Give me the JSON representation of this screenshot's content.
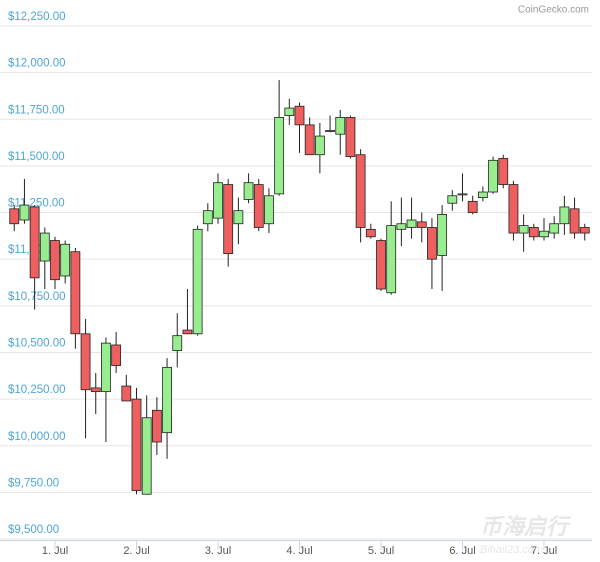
{
  "chart_data": {
    "type": "candlestick",
    "credit": "CoinGecko.com",
    "watermark": [
      "币海启行",
      "Bihaii23.com"
    ],
    "xlim": [
      0.4,
      7.6
    ],
    "xticks": [
      {
        "value": 1,
        "label": "1. Jul"
      },
      {
        "value": 2,
        "label": "2. Jul"
      },
      {
        "value": 3,
        "label": "3. Jul"
      },
      {
        "value": 4,
        "label": "4. Jul"
      },
      {
        "value": 5,
        "label": "5. Jul"
      },
      {
        "value": 6,
        "label": "6. Jul"
      },
      {
        "value": 7,
        "label": "7. Jul"
      }
    ],
    "ylim": [
      9500,
      12250
    ],
    "yticks": [
      {
        "value": 9500,
        "label": "$9,500.00"
      },
      {
        "value": 9750,
        "label": "$9,750.00"
      },
      {
        "value": 10000,
        "label": "$10,000.00"
      },
      {
        "value": 10250,
        "label": "$10,250.00"
      },
      {
        "value": 10500,
        "label": "$10,500.00"
      },
      {
        "value": 10750,
        "label": "$10,750.00"
      },
      {
        "value": 11000,
        "label": "$11,000.00"
      },
      {
        "value": 11250,
        "label": "$11,250.00"
      },
      {
        "value": 11500,
        "label": "$11,500.00"
      },
      {
        "value": 11750,
        "label": "$11,750.00"
      },
      {
        "value": 12000,
        "label": "$12,000.00"
      },
      {
        "value": 12250,
        "label": "$12,250.00"
      }
    ],
    "grid": true,
    "up_color": "#98ee8f",
    "down_color": "#ee5f5f",
    "series": [
      {
        "x": [
          0.5,
          0.625,
          0.75,
          0.875,
          1,
          1.125,
          1.25,
          1.375,
          1.5,
          1.625,
          1.75,
          1.875,
          2,
          2.125,
          2.25,
          2.375,
          2.5,
          2.625,
          2.75,
          2.875,
          3,
          3.125,
          3.25,
          3.375,
          3.5,
          3.625,
          3.75,
          3.875,
          4,
          4.125,
          4.25,
          4.375,
          4.5,
          4.625,
          4.75,
          4.875,
          5,
          5.125,
          5.25,
          5.375,
          5.5,
          5.625,
          5.75,
          5.875,
          6,
          6.125,
          6.25,
          6.375,
          6.5,
          6.625,
          6.75,
          6.875,
          7,
          7.125,
          7.25,
          7.375,
          7.5
        ],
        "open": [
          11270,
          11210,
          11280,
          10990,
          11100,
          10910,
          11040,
          10600,
          10310,
          10290,
          10540,
          10320,
          10250,
          9740,
          10190,
          10070,
          10510,
          10620,
          10600,
          11190,
          11220,
          11400,
          11190,
          11320,
          11400,
          11190,
          11350,
          11770,
          11820,
          11720,
          11560,
          11690,
          11670,
          11760,
          11560,
          11160,
          11100,
          10820,
          11160,
          11170,
          11200,
          11170,
          11020,
          11300,
          11350,
          11310,
          11330,
          11360,
          11540,
          11400,
          11140,
          11170,
          11120,
          11140,
          11190,
          11270,
          11170
        ],
        "high": [
          11290,
          11430,
          11290,
          11170,
          11120,
          11100,
          11060,
          10680,
          10390,
          10580,
          10610,
          10380,
          10310,
          10270,
          10260,
          10470,
          10710,
          10840,
          11180,
          11300,
          11460,
          11430,
          11330,
          11460,
          11430,
          11380,
          11960,
          11860,
          11840,
          11760,
          11730,
          11770,
          11800,
          11770,
          11590,
          11190,
          11110,
          11310,
          11330,
          11330,
          11250,
          11220,
          11290,
          11370,
          11460,
          11340,
          11390,
          11550,
          11560,
          11420,
          11240,
          11190,
          11220,
          11230,
          11340,
          11330,
          11190
        ],
        "low": [
          11150,
          11190,
          10730,
          10840,
          10840,
          10870,
          10520,
          10040,
          10170,
          10020,
          10390,
          10240,
          9740,
          9740,
          9950,
          9930,
          10420,
          10600,
          10590,
          11150,
          11190,
          10960,
          11080,
          11300,
          11150,
          11140,
          11340,
          11720,
          11570,
          11560,
          11460,
          11680,
          11560,
          11540,
          11090,
          11110,
          10830,
          10810,
          11070,
          11110,
          11090,
          10840,
          10830,
          11260,
          11310,
          11240,
          11310,
          11350,
          11380,
          11100,
          11040,
          11100,
          11100,
          11110,
          11130,
          11110,
          11100
        ],
        "close": [
          11190,
          11290,
          10900,
          11140,
          10890,
          11080,
          10600,
          10300,
          10290,
          10550,
          10430,
          10240,
          9760,
          10150,
          10020,
          10420,
          10590,
          10600,
          11160,
          11260,
          11410,
          11030,
          11260,
          11410,
          11170,
          11340,
          11760,
          11810,
          11720,
          11560,
          11660,
          11690,
          11760,
          11550,
          11170,
          11120,
          10840,
          11180,
          11190,
          11210,
          11170,
          11000,
          11240,
          11340,
          11350,
          11250,
          11360,
          11530,
          11400,
          11140,
          11180,
          11120,
          11150,
          11190,
          11280,
          11140,
          11140
        ]
      }
    ]
  }
}
